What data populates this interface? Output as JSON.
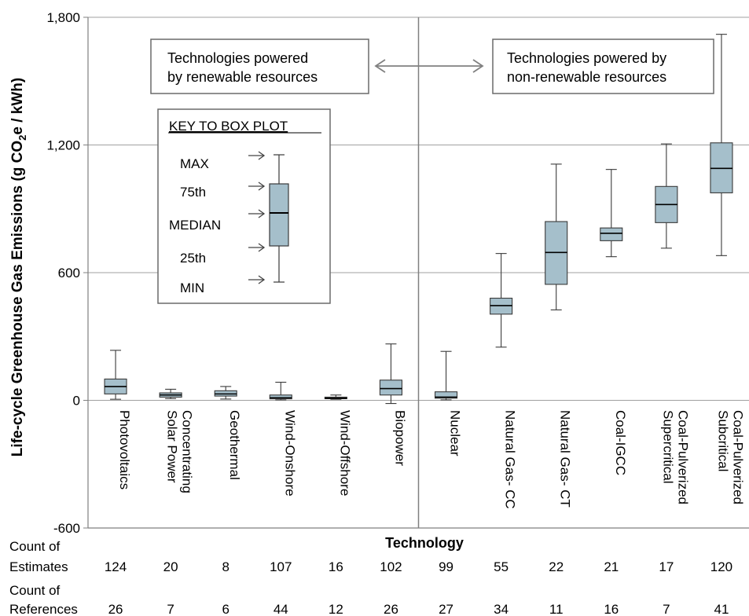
{
  "chart_data": {
    "type": "box",
    "ylabel_main": "Life-cycle Greenhouse Gas Emissions (g CO",
    "ylabel_sub": "2",
    "ylabel_end": "e / kWh)",
    "xlabel": "Technology",
    "ylim": [
      -600,
      1800
    ],
    "y_ticks": [
      "1,800",
      "1,200",
      "600",
      "0",
      "-600"
    ],
    "y_tick_values": [
      1800,
      1200,
      600,
      0,
      -600
    ],
    "grid": true,
    "categories": [
      {
        "label_lines": [
          "Photovoltaics"
        ],
        "min": 5,
        "q1": 30,
        "median": 65,
        "q3": 100,
        "max": 235
      },
      {
        "label_lines": [
          "Concentrating",
          "Solar Power"
        ],
        "min": 8,
        "q1": 15,
        "median": 25,
        "q3": 35,
        "max": 52
      },
      {
        "label_lines": [
          "Geothermal"
        ],
        "min": 6,
        "q1": 20,
        "median": 30,
        "q3": 45,
        "max": 65
      },
      {
        "label_lines": [
          "Wind-Onshore"
        ],
        "min": 2,
        "q1": 7,
        "median": 12,
        "q3": 25,
        "max": 85
      },
      {
        "label_lines": [
          "Wind-Offshore"
        ],
        "min": 5,
        "q1": 8,
        "median": 10,
        "q3": 15,
        "max": 25
      },
      {
        "label_lines": [
          "Biopower"
        ],
        "min": -15,
        "q1": 25,
        "median": 55,
        "q3": 95,
        "max": 265
      },
      {
        "label_lines": [
          "Nuclear"
        ],
        "min": 2,
        "q1": 10,
        "median": 15,
        "q3": 40,
        "max": 230
      },
      {
        "label_lines": [
          "Natural Gas- CC"
        ],
        "min": 250,
        "q1": 405,
        "median": 445,
        "q3": 480,
        "max": 690
      },
      {
        "label_lines": [
          "Natural Gas- CT"
        ],
        "min": 425,
        "q1": 545,
        "median": 695,
        "q3": 840,
        "max": 1110
      },
      {
        "label_lines": [
          "Coal-IGCC"
        ],
        "min": 675,
        "q1": 750,
        "median": 785,
        "q3": 810,
        "max": 1085
      },
      {
        "label_lines": [
          "Coal-Pulverized",
          "Supercritical"
        ],
        "min": 715,
        "q1": 835,
        "median": 920,
        "q3": 1005,
        "max": 1205
      },
      {
        "label_lines": [
          "Coal-Pulverized",
          "Subcritical"
        ],
        "min": 680,
        "q1": 975,
        "median": 1090,
        "q3": 1210,
        "max": 1720
      }
    ],
    "annotations": {
      "renewable_line1": "Technologies powered",
      "renewable_line2": "by renewable resources",
      "nonrenewable_line1": "Technologies powered by",
      "nonrenewable_line2": "non-renewable resources"
    },
    "key": {
      "title": "KEY TO BOX PLOT",
      "max": "MAX",
      "q3": "75th",
      "median": "MEDIAN",
      "q1": "25th",
      "min": "MIN"
    },
    "counts": {
      "estimates_label_lines": [
        "Count of",
        "Estimates"
      ],
      "estimates": [
        "124",
        "20",
        "8",
        "107",
        "16",
        "102",
        "99",
        "55",
        "22",
        "21",
        "17",
        "120"
      ],
      "references_label_lines": [
        "Count of",
        "References"
      ],
      "references": [
        "26",
        "7",
        "6",
        "44",
        "12",
        "26",
        "27",
        "34",
        "11",
        "16",
        "7",
        "41"
      ]
    },
    "colors": {
      "box_fill": "#a5bfcb",
      "box_stroke": "#3a3a3a",
      "grid": "#a0a0a0",
      "divider": "#808080"
    }
  }
}
